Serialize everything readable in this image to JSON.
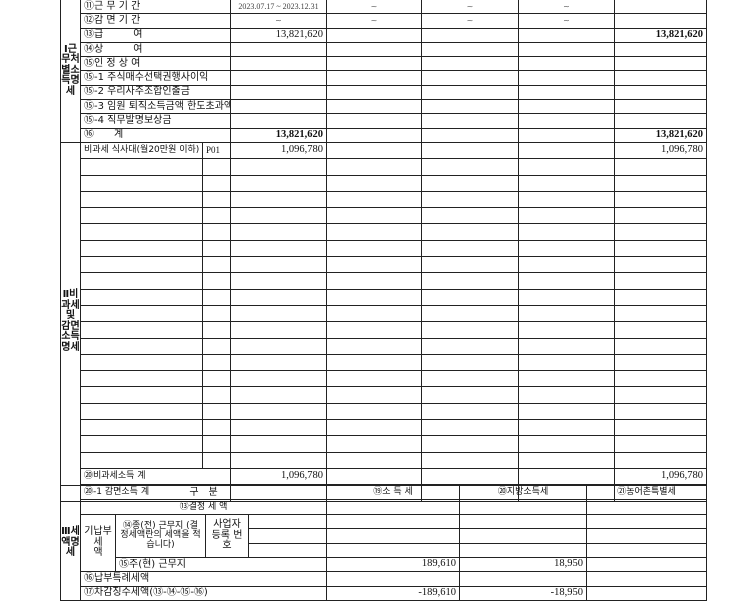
{
  "section1": {
    "title": "Ⅰ근무처별소득명세",
    "rows": [
      {
        "label": "⑪근 무 기 간",
        "c1": "2023.07.17 ~ 2023.12.31",
        "c2": "~",
        "c3": "~",
        "c4": "~",
        "total": ""
      },
      {
        "label": "⑫감 면 기 간",
        "c1": "~",
        "c2": "~",
        "c3": "~",
        "c4": "~",
        "total": ""
      },
      {
        "label": "⑬급　　　여",
        "c1": "13,821,620",
        "c2": "",
        "c3": "",
        "c4": "",
        "total": "13,821,620"
      },
      {
        "label": "⑭상　　　여",
        "c1": "",
        "c2": "",
        "c3": "",
        "c4": "",
        "total": ""
      },
      {
        "label": "⑮인 정 상 여",
        "c1": "",
        "c2": "",
        "c3": "",
        "c4": "",
        "total": ""
      },
      {
        "label": "⑮-1 주식매수선택권행사이익",
        "c1": "",
        "c2": "",
        "c3": "",
        "c4": "",
        "total": ""
      },
      {
        "label": "⑮-2 우리사주조합인출금",
        "c1": "",
        "c2": "",
        "c3": "",
        "c4": "",
        "total": ""
      },
      {
        "label": "⑮-3 임원 퇴직소득금액 한도초과액",
        "c1": "",
        "c2": "",
        "c3": "",
        "c4": "",
        "total": ""
      },
      {
        "label": "⑮-4 직무발명보상금",
        "c1": "",
        "c2": "",
        "c3": "",
        "c4": "",
        "total": ""
      },
      {
        "label": "⑯　　계",
        "c1": "13,821,620",
        "c2": "",
        "c3": "",
        "c4": "",
        "total": "13,821,620"
      }
    ]
  },
  "section2": {
    "title": "Ⅱ비과세 및 감면소득명세",
    "first_row": {
      "label": "비과세 식사대(월20만원 이하)",
      "code": "P01",
      "c1": "1,096,780",
      "total": "1,096,780"
    },
    "nontax_total": {
      "label": "⑳비과세소득 계",
      "c1": "1,096,780",
      "total": "1,096,780"
    },
    "exempt_total": {
      "label": "⑳-1 감면소득 계"
    }
  },
  "section3": {
    "title": "Ⅲ세액명세",
    "header": {
      "category": "구　분",
      "income_tax": "⑲소 득 세",
      "local_tax": "⑳지방소득세",
      "rural_tax": "㉑농어촌특별세"
    },
    "determined": "⑬결정 세 액",
    "prepaid": "기납부 세　액",
    "previous": "⑭종(전) 근무지 (결정세액란의 세액을 적습니다)",
    "bizno": "사업자 등록 번호",
    "current": {
      "label": "⑮주(현) 근무지",
      "income_tax": "189,610",
      "local_tax": "18,950",
      "rural_tax": ""
    },
    "special": "⑯납부특례세액",
    "deduct": {
      "label": "⑰차감징수세액(⑬-⑭-⑮-⑯)",
      "income_tax": "-189,610",
      "local_tax": "-18,950",
      "rural_tax": ""
    }
  }
}
